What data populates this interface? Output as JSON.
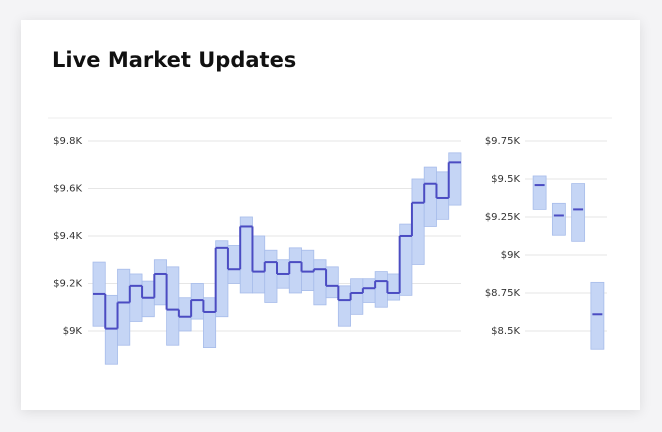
{
  "title": "Live Market Updates",
  "chart_data": [
    {
      "type": "step-range",
      "values": [
        9156,
        9010,
        9120,
        9190,
        9140,
        9240,
        9090,
        9060,
        9130,
        9080,
        9350,
        9260,
        9440,
        9250,
        9290,
        9240,
        9290,
        9250,
        9260,
        9190,
        9130,
        9160,
        9180,
        9210,
        9160,
        9400,
        9540,
        9620,
        9560,
        9710
      ],
      "low": [
        9020,
        8860,
        8940,
        9040,
        9060,
        9110,
        8940,
        9000,
        9050,
        8930,
        9060,
        9200,
        9160,
        9160,
        9120,
        9180,
        9160,
        9170,
        9110,
        9140,
        9020,
        9070,
        9120,
        9100,
        9130,
        9150,
        9280,
        9440,
        9470,
        9530
      ],
      "high": [
        9290,
        9150,
        9260,
        9240,
        9210,
        9300,
        9270,
        9140,
        9200,
        9140,
        9380,
        9360,
        9480,
        9400,
        9340,
        9300,
        9350,
        9340,
        9300,
        9270,
        9190,
        9220,
        9220,
        9250,
        9240,
        9450,
        9640,
        9690,
        9670,
        9750
      ],
      "color": "#4b4cc2",
      "band_color": "#c5d5f5",
      "band_stroke": "#a7bcea",
      "ylim": [
        8850,
        9850
      ],
      "yticks": [
        {
          "value": 9000,
          "label": "$9K"
        },
        {
          "value": 9200,
          "label": "$9.2K"
        },
        {
          "value": 9400,
          "label": "$9.4K"
        },
        {
          "value": 9600,
          "label": "$9.6K"
        },
        {
          "value": 9800,
          "label": "$9.8K"
        }
      ],
      "grid": true
    },
    {
      "type": "range",
      "values": [
        9460,
        9260,
        9300,
        8610
      ],
      "low": [
        9300,
        9130,
        9090,
        8380
      ],
      "high": [
        9520,
        9340,
        9470,
        8820
      ],
      "color": "#4b4cc2",
      "band_color": "#c5d5f5",
      "band_stroke": "#a7bcea",
      "ylim": [
        8350,
        9800
      ],
      "yticks": [
        {
          "value": 8500,
          "label": "$8.5K"
        },
        {
          "value": 8750,
          "label": "$8.75K"
        },
        {
          "value": 9000,
          "label": "$9K"
        },
        {
          "value": 9250,
          "label": "$9.25K"
        },
        {
          "value": 9500,
          "label": "$9.5K"
        },
        {
          "value": 9750,
          "label": "$9.75K"
        }
      ],
      "grid": true
    }
  ]
}
